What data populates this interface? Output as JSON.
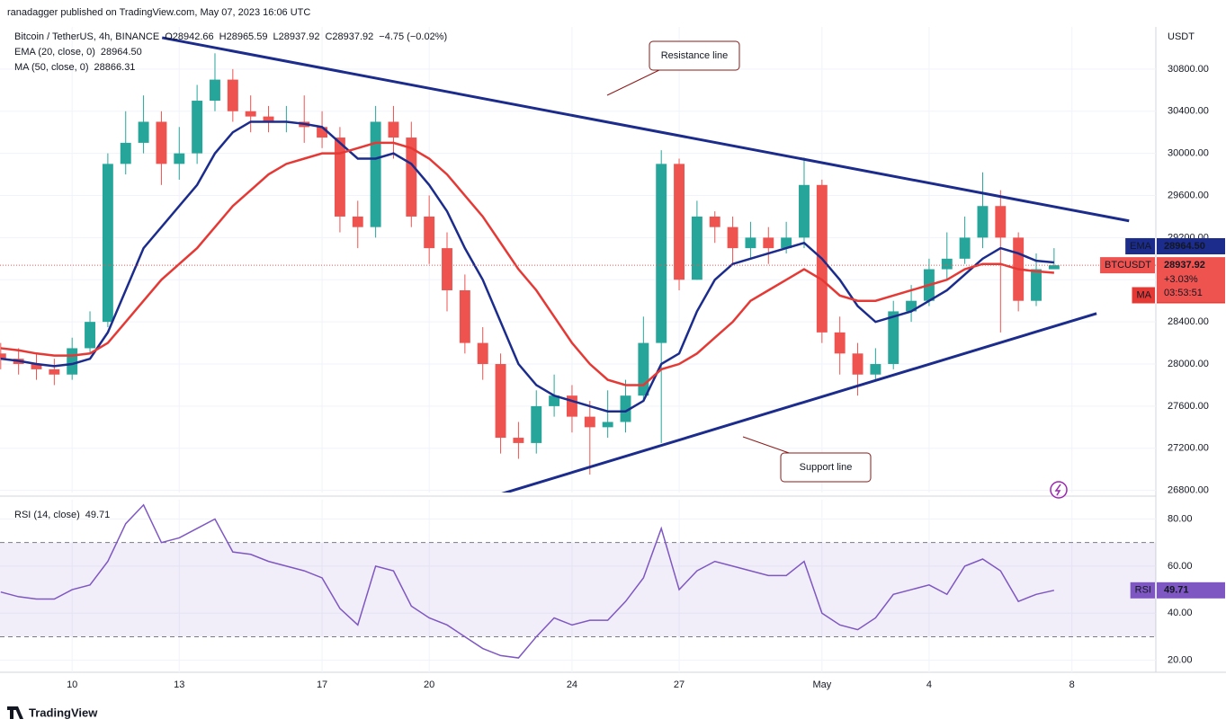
{
  "header": {
    "published": "ranadagger published on TradingView.com, May 07, 2023 16:06 UTC",
    "logo": "TradingView"
  },
  "chart_data": {
    "type": "candlestick",
    "symbol": "Bitcoin / TetherUS, 4h, BINANCE",
    "ohlc_text": [
      "O28942.66",
      "H28965.59",
      "L28937.92",
      "C28937.92",
      "−4.75 (−0.02%)"
    ],
    "axis_unit": "USDT",
    "x": [
      8,
      8.5,
      9,
      9.5,
      10,
      10.5,
      11,
      11.5,
      12,
      12.5,
      13,
      13.5,
      14,
      14.5,
      15,
      15.5,
      16,
      16.5,
      17,
      17.5,
      18,
      18.5,
      19,
      19.5,
      20,
      20.5,
      21,
      21.5,
      22,
      22.5,
      23,
      23.5,
      24,
      24.5,
      25,
      25.5,
      26,
      26.5,
      27,
      27.5,
      28,
      28.5,
      29,
      29.5,
      30,
      30.5,
      31,
      31.5,
      32,
      32.5,
      33,
      33.5,
      34,
      34.5,
      35,
      35.5,
      36,
      36.5,
      37,
      37.5
    ],
    "open": [
      28100,
      28050,
      28000,
      27950,
      27900,
      28150,
      28400,
      29900,
      30100,
      30300,
      29900,
      30000,
      30500,
      30700,
      30400,
      30350,
      30300,
      30300,
      30250,
      30150,
      29400,
      29300,
      30300,
      30150,
      29400,
      29100,
      28700,
      28200,
      28000,
      27300,
      27250,
      27600,
      27700,
      27500,
      27400,
      27450,
      27700,
      28200,
      29900,
      28800,
      29400,
      29300,
      29100,
      29200,
      29100,
      29200,
      29700,
      28300,
      28100,
      27900,
      28000,
      28500,
      28600,
      28900,
      29000,
      29200,
      29500,
      29200,
      28600,
      28900
    ],
    "high": [
      28200,
      28150,
      28100,
      28050,
      28250,
      28500,
      30000,
      30400,
      30550,
      30400,
      30250,
      30650,
      30950,
      30800,
      30550,
      30450,
      30450,
      30550,
      30400,
      30250,
      29550,
      30450,
      30450,
      30300,
      29600,
      29250,
      28850,
      28350,
      28100,
      27450,
      27750,
      27900,
      27800,
      27650,
      27750,
      27850,
      28450,
      30030,
      29950,
      29550,
      29450,
      29400,
      29350,
      29300,
      29350,
      29960,
      29750,
      28450,
      28200,
      28150,
      28600,
      28750,
      29000,
      29250,
      29400,
      29820,
      29650,
      29250,
      29050,
      29100
    ],
    "low": [
      27950,
      27900,
      27850,
      27800,
      27850,
      28100,
      28350,
      29800,
      30000,
      29700,
      29750,
      29900,
      30400,
      30300,
      30200,
      30200,
      30200,
      30100,
      30050,
      29250,
      29100,
      29200,
      29950,
      29300,
      28950,
      28500,
      28100,
      27850,
      27150,
      27100,
      27150,
      27500,
      27350,
      26950,
      27300,
      27350,
      27650,
      27250,
      28700,
      28800,
      29150,
      28950,
      29000,
      28950,
      29050,
      29100,
      28200,
      27900,
      27700,
      27850,
      27950,
      28400,
      28550,
      28800,
      28950,
      29100,
      28300,
      28500,
      28550,
      28900
    ],
    "close": [
      28050,
      28000,
      27950,
      27900,
      28150,
      28400,
      29900,
      30100,
      30300,
      29900,
      30000,
      30500,
      30700,
      30400,
      30350,
      30300,
      30300,
      30250,
      30150,
      29400,
      29300,
      30300,
      30150,
      29400,
      29100,
      28700,
      28200,
      28000,
      27300,
      27250,
      27600,
      27700,
      27500,
      27400,
      27450,
      27700,
      28200,
      29900,
      28800,
      29400,
      29300,
      29100,
      29200,
      29100,
      29200,
      29700,
      28300,
      28100,
      27900,
      28000,
      28500,
      28600,
      28900,
      29000,
      29200,
      29500,
      29200,
      28600,
      28900,
      28937.92
    ],
    "up_color": "#26a69a",
    "down_color": "#ef5350",
    "price_tag": {
      "name": "BTCUSDT",
      "value": 28937.92,
      "label": "28937.92",
      "change": "+3.03%",
      "countdown": "03:53:51"
    },
    "series": [
      {
        "name": "EMA",
        "legend": "EMA (20, close, 0)",
        "color": "#1b2c8c",
        "values": [
          28050,
          28030,
          28000,
          27980,
          28000,
          28050,
          28300,
          28700,
          29100,
          29300,
          29500,
          29700,
          30000,
          30200,
          30300,
          30300,
          30300,
          30280,
          30250,
          30100,
          29950,
          29950,
          30000,
          29900,
          29700,
          29450,
          29100,
          28800,
          28400,
          28000,
          27800,
          27700,
          27650,
          27600,
          27550,
          27550,
          27650,
          28000,
          28100,
          28500,
          28800,
          28950,
          29000,
          29050,
          29100,
          29150,
          29000,
          28800,
          28550,
          28400,
          28450,
          28500,
          28600,
          28700,
          28850,
          29000,
          29100,
          29050,
          28980,
          28964.5
        ],
        "tag": {
          "value": 28964.5,
          "label": "28964.50"
        }
      },
      {
        "name": "MA",
        "legend": "MA (50, close, 0)",
        "color": "#e53935",
        "values": [
          28150,
          28130,
          28100,
          28080,
          28080,
          28100,
          28200,
          28400,
          28600,
          28800,
          28950,
          29100,
          29300,
          29500,
          29650,
          29800,
          29900,
          29950,
          30000,
          30000,
          30050,
          30100,
          30100,
          30050,
          29950,
          29800,
          29600,
          29400,
          29150,
          28900,
          28700,
          28450,
          28200,
          28000,
          27850,
          27800,
          27800,
          27950,
          28000,
          28100,
          28250,
          28400,
          28600,
          28700,
          28800,
          28900,
          28800,
          28650,
          28600,
          28600,
          28650,
          28700,
          28750,
          28800,
          28900,
          28950,
          28950,
          28900,
          28880,
          28866.31
        ],
        "tag": {
          "value": 28866.31,
          "label": "28866.31"
        }
      }
    ],
    "trendlines": [
      {
        "name": "Resistance line",
        "x": [
          12.52,
          39.6
        ],
        "y": [
          31098,
          29359
        ]
      },
      {
        "name": "Support line",
        "x": [
          21.68,
          38.69
        ],
        "y": [
          26732,
          28480
        ]
      }
    ],
    "xlim": [
      7.98,
      40.35
    ],
    "xticks": [
      10,
      13,
      17,
      20,
      24,
      27,
      {
        "value": 31,
        "label": "May"
      },
      {
        "value": 34,
        "label": "4"
      },
      {
        "value": 38,
        "label": "8"
      }
    ],
    "ylim": [
      26780,
      31200
    ],
    "yticks": [
      {
        "value": 26800,
        "label": "26800.00"
      },
      {
        "value": 27200,
        "label": "27200.00"
      },
      {
        "value": 27600,
        "label": "27600.00"
      },
      {
        "value": 28000,
        "label": "28000.00"
      },
      {
        "value": 28400,
        "label": "28400.00"
      },
      {
        "value": 28800,
        "label": "28800.00"
      },
      {
        "value": 29200,
        "label": "29200.00"
      },
      {
        "value": 29600,
        "label": "29600.00"
      },
      {
        "value": 30000,
        "label": "30000.00"
      },
      {
        "value": 30400,
        "label": "30400.00"
      },
      {
        "value": 30800,
        "label": "30800.00"
      }
    ],
    "grid": true,
    "rsi": {
      "title": "RSI (14, close)",
      "name": "RSI",
      "color": "#7e57c2",
      "values": [
        49,
        47,
        46,
        46,
        50,
        52,
        62,
        78,
        86,
        70,
        72,
        76,
        80,
        66,
        65,
        62,
        60,
        58,
        55,
        42,
        35,
        60,
        58,
        43,
        38,
        35,
        30,
        25,
        22,
        21,
        30,
        38,
        35,
        37,
        37,
        45,
        55,
        76,
        50,
        58,
        62,
        60,
        58,
        56,
        56,
        62,
        40,
        35,
        33,
        38,
        48,
        50,
        52,
        48,
        60,
        63,
        58,
        45,
        48,
        49.71
      ],
      "tag": {
        "value": 49.71,
        "label": "49.71"
      },
      "bands": [
        30,
        70
      ],
      "ylim": [
        14.9,
        88.2
      ],
      "yticks": [
        {
          "value": 20,
          "label": "20.00"
        },
        {
          "value": 40,
          "label": "40.00"
        },
        {
          "value": 60,
          "label": "60.00"
        },
        {
          "value": 80,
          "label": "80.00"
        }
      ]
    }
  }
}
